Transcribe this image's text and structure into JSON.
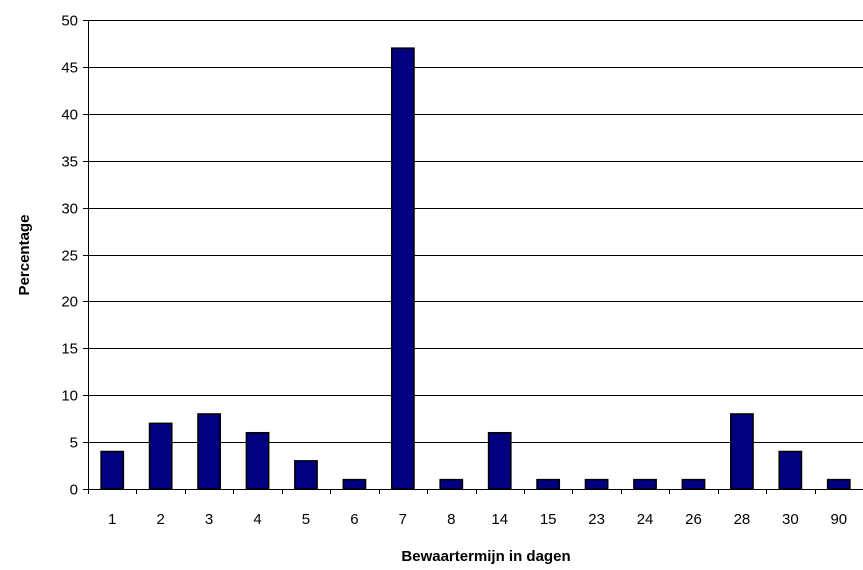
{
  "chart_data": {
    "type": "bar",
    "title": "",
    "xlabel": "Bewaartermijn in dagen",
    "ylabel": "Percentage",
    "categories": [
      "1",
      "2",
      "3",
      "4",
      "5",
      "6",
      "7",
      "8",
      "14",
      "15",
      "23",
      "24",
      "26",
      "28",
      "30",
      "90"
    ],
    "values": [
      4,
      7,
      8,
      6,
      3,
      1,
      47,
      1,
      6,
      1,
      1,
      1,
      1,
      8,
      4,
      1
    ],
    "ylim": [
      0,
      50
    ],
    "yticks": [
      "0",
      "5",
      "10",
      "15",
      "20",
      "25",
      "30",
      "35",
      "40",
      "45",
      "50"
    ],
    "grid": true,
    "bar_color": "#000080",
    "legend": "none"
  }
}
